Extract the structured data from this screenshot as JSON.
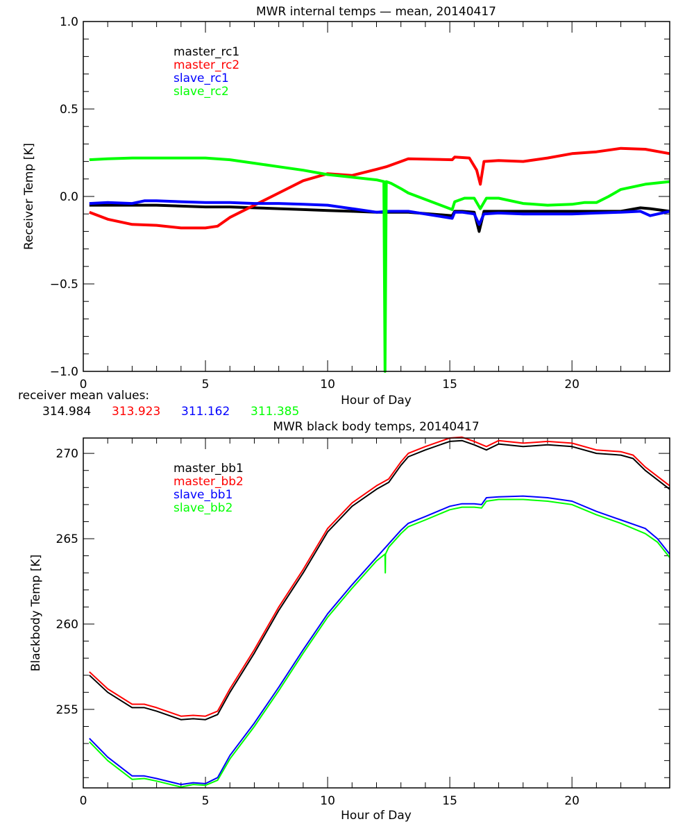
{
  "colors": {
    "black": "#000000",
    "red": "#ff0000",
    "blue": "#0000ff",
    "green": "#00ff00"
  },
  "chart_data": [
    {
      "type": "line",
      "title": "MWR internal temps — mean, 20140417",
      "xlabel": "Hour of Day",
      "ylabel": "Receiver Temp [K]",
      "xlim": [
        0,
        24
      ],
      "ylim": [
        -1.0,
        1.0
      ],
      "xticks": [
        0,
        5,
        10,
        15,
        20
      ],
      "xtick_labels": [
        "0",
        "5",
        "10",
        "15",
        "20"
      ],
      "yticks": [
        -1.0,
        -0.5,
        0.0,
        0.5,
        1.0
      ],
      "ytick_labels": [
        "−1.0",
        "−0.5",
        "0.0",
        "0.5",
        "1.0"
      ],
      "grid": false,
      "legend_position": "top-left",
      "series": [
        {
          "name": "master_rc1",
          "color": "#000000",
          "x": [
            0.25,
            1,
            2,
            3,
            4,
            5,
            6,
            7,
            8,
            9,
            10,
            11,
            12,
            12.5,
            13.3,
            15.1,
            15.2,
            15.5,
            16.0,
            16.2,
            16.4,
            17,
            18,
            19,
            20,
            21,
            22,
            22.8,
            23.2,
            24
          ],
          "y": [
            -0.05,
            -0.05,
            -0.05,
            -0.05,
            -0.055,
            -0.06,
            -0.06,
            -0.065,
            -0.07,
            -0.075,
            -0.08,
            -0.085,
            -0.09,
            -0.09,
            -0.09,
            -0.11,
            -0.085,
            -0.085,
            -0.09,
            -0.2,
            -0.085,
            -0.085,
            -0.085,
            -0.085,
            -0.085,
            -0.085,
            -0.085,
            -0.065,
            -0.07,
            -0.085
          ]
        },
        {
          "name": "master_rc2",
          "color": "#ff0000",
          "x": [
            0.25,
            1,
            2,
            3,
            4,
            5,
            5.5,
            6,
            7,
            8,
            9,
            10,
            11,
            12,
            12.4,
            13,
            13.3,
            15.1,
            15.2,
            15.8,
            16.1,
            16.25,
            16.4,
            17,
            18,
            19,
            20,
            21,
            22,
            23,
            24
          ],
          "y": [
            -0.09,
            -0.13,
            -0.16,
            -0.165,
            -0.18,
            -0.18,
            -0.17,
            -0.12,
            -0.05,
            0.02,
            0.09,
            0.13,
            0.12,
            0.155,
            0.17,
            0.2,
            0.215,
            0.21,
            0.225,
            0.22,
            0.15,
            0.07,
            0.2,
            0.205,
            0.2,
            0.22,
            0.245,
            0.255,
            0.275,
            0.27,
            0.245
          ]
        },
        {
          "name": "slave_rc1",
          "color": "#0000ff",
          "x": [
            0.25,
            1,
            2,
            2.5,
            3,
            4,
            5,
            6,
            7,
            8,
            9,
            10,
            11,
            12,
            12.5,
            13.3,
            15.1,
            15.2,
            15.5,
            16.0,
            16.2,
            16.4,
            17,
            18,
            19,
            20,
            21,
            22,
            22.8,
            23.2,
            24
          ],
          "y": [
            -0.04,
            -0.035,
            -0.04,
            -0.025,
            -0.025,
            -0.03,
            -0.035,
            -0.035,
            -0.04,
            -0.04,
            -0.045,
            -0.05,
            -0.07,
            -0.09,
            -0.085,
            -0.085,
            -0.125,
            -0.09,
            -0.09,
            -0.1,
            -0.16,
            -0.1,
            -0.095,
            -0.1,
            -0.1,
            -0.1,
            -0.095,
            -0.09,
            -0.085,
            -0.11,
            -0.085
          ]
        },
        {
          "name": "slave_rc2",
          "color": "#00ff00",
          "x": [
            0.25,
            1,
            2,
            3,
            4,
            5,
            6,
            7,
            8,
            9,
            10,
            11,
            12,
            12.3,
            12.35,
            12.4,
            12.6,
            13,
            13.3,
            15.1,
            15.2,
            15.6,
            16.0,
            16.25,
            16.5,
            17,
            18,
            19,
            20,
            20.5,
            21,
            21.5,
            22,
            23,
            24
          ],
          "y": [
            0.21,
            0.215,
            0.22,
            0.22,
            0.22,
            0.22,
            0.21,
            0.19,
            0.17,
            0.15,
            0.125,
            0.11,
            0.095,
            0.085,
            -1.0,
            0.085,
            0.075,
            0.045,
            0.02,
            -0.075,
            -0.03,
            -0.01,
            -0.01,
            -0.07,
            -0.01,
            -0.01,
            -0.04,
            -0.05,
            -0.045,
            -0.035,
            -0.035,
            0.0,
            0.04,
            0.07,
            0.085
          ]
        }
      ],
      "annotation": {
        "label": "receiver mean values:",
        "values": [
          {
            "text": "314.984",
            "color": "#000000"
          },
          {
            "text": "313.923",
            "color": "#ff0000"
          },
          {
            "text": "311.162",
            "color": "#0000ff"
          },
          {
            "text": "311.385",
            "color": "#00ff00"
          }
        ]
      }
    },
    {
      "type": "line",
      "title": "MWR black body temps, 20140417",
      "xlabel": "Hour of Day",
      "ylabel": "Blackbody Temp [K]",
      "xlim": [
        0,
        24
      ],
      "ylim": [
        250.4,
        270.9
      ],
      "xticks": [
        0,
        5,
        10,
        15,
        20
      ],
      "xtick_labels": [
        "0",
        "5",
        "10",
        "15",
        "20"
      ],
      "yticks": [
        255,
        260,
        265,
        270
      ],
      "ytick_labels": [
        "255",
        "260",
        "265",
        "270"
      ],
      "grid": false,
      "legend_position": "top-left",
      "series": [
        {
          "name": "master_bb1",
          "color": "#000000",
          "x": [
            0.25,
            1,
            2,
            2.5,
            3,
            4,
            4.5,
            5,
            5.5,
            6,
            7,
            8,
            9,
            10,
            11,
            12,
            12.5,
            13,
            13.3,
            14,
            15,
            15.5,
            16,
            16.5,
            17,
            18,
            19,
            20,
            21,
            22,
            22.5,
            23,
            24
          ],
          "y": [
            257.0,
            256.0,
            255.1,
            255.1,
            254.9,
            254.4,
            254.45,
            254.4,
            254.7,
            256.0,
            258.3,
            260.8,
            263.0,
            265.4,
            266.9,
            267.9,
            268.3,
            269.3,
            269.8,
            270.2,
            270.7,
            270.75,
            270.5,
            270.2,
            270.55,
            270.4,
            270.5,
            270.4,
            270.0,
            269.9,
            269.7,
            269.0,
            267.9
          ]
        },
        {
          "name": "master_bb2",
          "color": "#ff0000",
          "x": [
            0.25,
            1,
            2,
            2.5,
            3,
            4,
            4.5,
            5,
            5.5,
            6,
            7,
            8,
            9,
            10,
            11,
            12,
            12.5,
            13,
            13.3,
            14,
            15,
            15.5,
            16,
            16.5,
            17,
            18,
            19,
            20,
            21,
            22,
            22.5,
            23,
            24
          ],
          "y": [
            257.2,
            256.2,
            255.3,
            255.3,
            255.1,
            254.6,
            254.65,
            254.6,
            254.9,
            256.2,
            258.5,
            261.0,
            263.2,
            265.6,
            267.1,
            268.1,
            268.5,
            269.5,
            270.0,
            270.4,
            270.9,
            270.95,
            270.7,
            270.4,
            270.75,
            270.6,
            270.7,
            270.6,
            270.2,
            270.1,
            269.9,
            269.2,
            268.1
          ]
        },
        {
          "name": "slave_bb1",
          "color": "#0000ff",
          "x": [
            0.25,
            1,
            2,
            2.5,
            3,
            4,
            4.5,
            5,
            5.5,
            6,
            7,
            8,
            9,
            10,
            11,
            12,
            12.5,
            13,
            13.3,
            14,
            15,
            15.5,
            16,
            16.3,
            16.5,
            17,
            18,
            19,
            20,
            21,
            22,
            23,
            23.5,
            24
          ],
          "y": [
            253.3,
            252.2,
            251.1,
            251.1,
            250.95,
            250.6,
            250.7,
            250.65,
            251.0,
            252.3,
            254.2,
            256.3,
            258.5,
            260.6,
            262.3,
            263.9,
            264.7,
            265.5,
            265.9,
            266.3,
            266.9,
            267.05,
            267.05,
            267.0,
            267.4,
            267.45,
            267.5,
            267.4,
            267.2,
            266.6,
            266.1,
            265.6,
            265.0,
            264.1
          ]
        },
        {
          "name": "slave_bb2",
          "color": "#00ff00",
          "x": [
            0.25,
            1,
            2,
            2.5,
            3,
            4,
            4.5,
            5,
            5.5,
            6,
            7,
            8,
            9,
            10,
            11,
            12,
            12.35,
            12.36,
            12.37,
            12.5,
            13,
            13.3,
            14,
            15,
            15.5,
            16,
            16.3,
            16.5,
            17,
            18,
            19,
            20,
            21,
            22,
            23,
            23.5,
            24
          ],
          "y": [
            253.1,
            252.0,
            250.9,
            250.95,
            250.8,
            250.45,
            250.6,
            250.55,
            250.85,
            252.1,
            254.0,
            256.1,
            258.3,
            260.4,
            262.1,
            263.7,
            264.1,
            263.0,
            264.1,
            264.5,
            265.3,
            265.7,
            266.1,
            266.7,
            266.85,
            266.85,
            266.8,
            267.2,
            267.3,
            267.3,
            267.2,
            267.0,
            266.4,
            265.9,
            265.3,
            264.8,
            263.9
          ]
        }
      ]
    }
  ]
}
